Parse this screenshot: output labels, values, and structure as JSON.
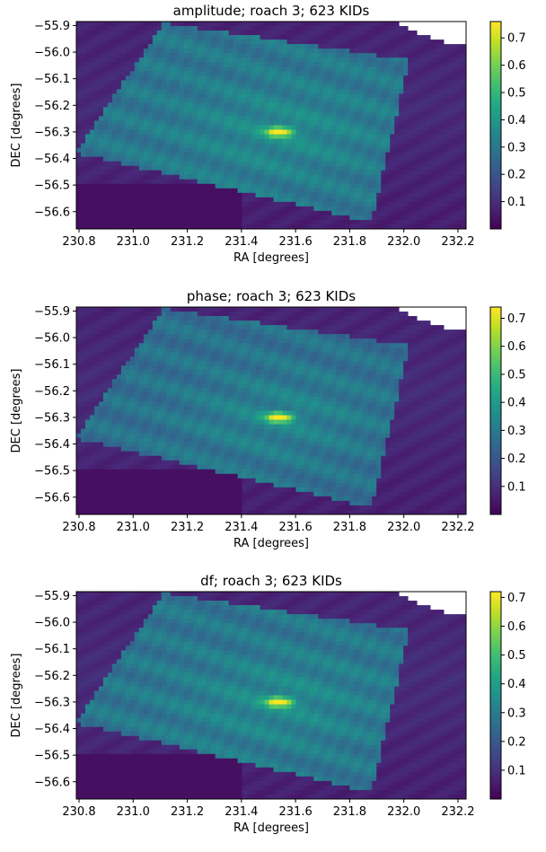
{
  "chart_data": [
    {
      "type": "heatmap",
      "title": "amplitude; roach 3; 623 KIDs",
      "xlabel": "RA [degrees]",
      "ylabel": "DEC [degrees]",
      "xlim": [
        230.79,
        232.23
      ],
      "ylim": [
        -56.665,
        -55.885
      ],
      "xticks": [
        "230.8",
        "231.0",
        "231.2",
        "231.4",
        "231.6",
        "231.8",
        "232.0",
        "232.2"
      ],
      "yticks": [
        "−55.9",
        "−56.0",
        "−56.1",
        "−56.2",
        "−56.3",
        "−56.4",
        "−56.5",
        "−56.6"
      ],
      "colorbar": {
        "min": 0.0,
        "max": 0.76,
        "ticks": [
          "0.1",
          "0.2",
          "0.3",
          "0.4",
          "0.5",
          "0.6",
          "0.7"
        ],
        "colormap": "viridis"
      },
      "peak": {
        "ra": 231.54,
        "dec": -56.3,
        "value": 0.76
      },
      "field": [
        [
          231.11,
          -55.89
        ],
        [
          232.02,
          -56.03
        ],
        [
          231.88,
          -56.64
        ],
        [
          230.79,
          -56.38
        ]
      ],
      "field_value": 0.3,
      "background_value": 0.06
    },
    {
      "type": "heatmap",
      "title": "phase; roach 3; 623 KIDs",
      "xlabel": "RA [degrees]",
      "ylabel": "DEC [degrees]",
      "xlim": [
        230.79,
        232.23
      ],
      "ylim": [
        -56.665,
        -55.885
      ],
      "xticks": [
        "230.8",
        "231.0",
        "231.2",
        "231.4",
        "231.6",
        "231.8",
        "232.0",
        "232.2"
      ],
      "yticks": [
        "−55.9",
        "−56.0",
        "−56.1",
        "−56.2",
        "−56.3",
        "−56.4",
        "−56.5",
        "−56.6"
      ],
      "colorbar": {
        "min": 0.0,
        "max": 0.74,
        "ticks": [
          "0.1",
          "0.2",
          "0.3",
          "0.4",
          "0.5",
          "0.6",
          "0.7"
        ],
        "colormap": "viridis"
      },
      "peak": {
        "ra": 231.54,
        "dec": -56.3,
        "value": 0.74
      },
      "field": [
        [
          231.11,
          -55.89
        ],
        [
          232.02,
          -56.03
        ],
        [
          231.88,
          -56.64
        ],
        [
          230.79,
          -56.38
        ]
      ],
      "field_value": 0.27,
      "background_value": 0.06
    },
    {
      "type": "heatmap",
      "title": "df; roach 3; 623 KIDs",
      "xlabel": "RA [degrees]",
      "ylabel": "DEC [degrees]",
      "xlim": [
        230.79,
        232.23
      ],
      "ylim": [
        -56.665,
        -55.885
      ],
      "xticks": [
        "230.8",
        "231.0",
        "231.2",
        "231.4",
        "231.6",
        "231.8",
        "232.0",
        "232.2"
      ],
      "yticks": [
        "−55.9",
        "−56.0",
        "−56.1",
        "−56.2",
        "−56.3",
        "−56.4",
        "−56.5",
        "−56.6"
      ],
      "colorbar": {
        "min": 0.0,
        "max": 0.72,
        "ticks": [
          "0.1",
          "0.2",
          "0.3",
          "0.4",
          "0.5",
          "0.6",
          "0.7"
        ],
        "colormap": "viridis"
      },
      "peak": {
        "ra": 231.54,
        "dec": -56.3,
        "value": 0.72
      },
      "field": [
        [
          231.11,
          -55.89
        ],
        [
          232.02,
          -56.03
        ],
        [
          231.88,
          -56.64
        ],
        [
          230.79,
          -56.38
        ]
      ],
      "field_value": 0.28,
      "background_value": 0.06
    }
  ]
}
